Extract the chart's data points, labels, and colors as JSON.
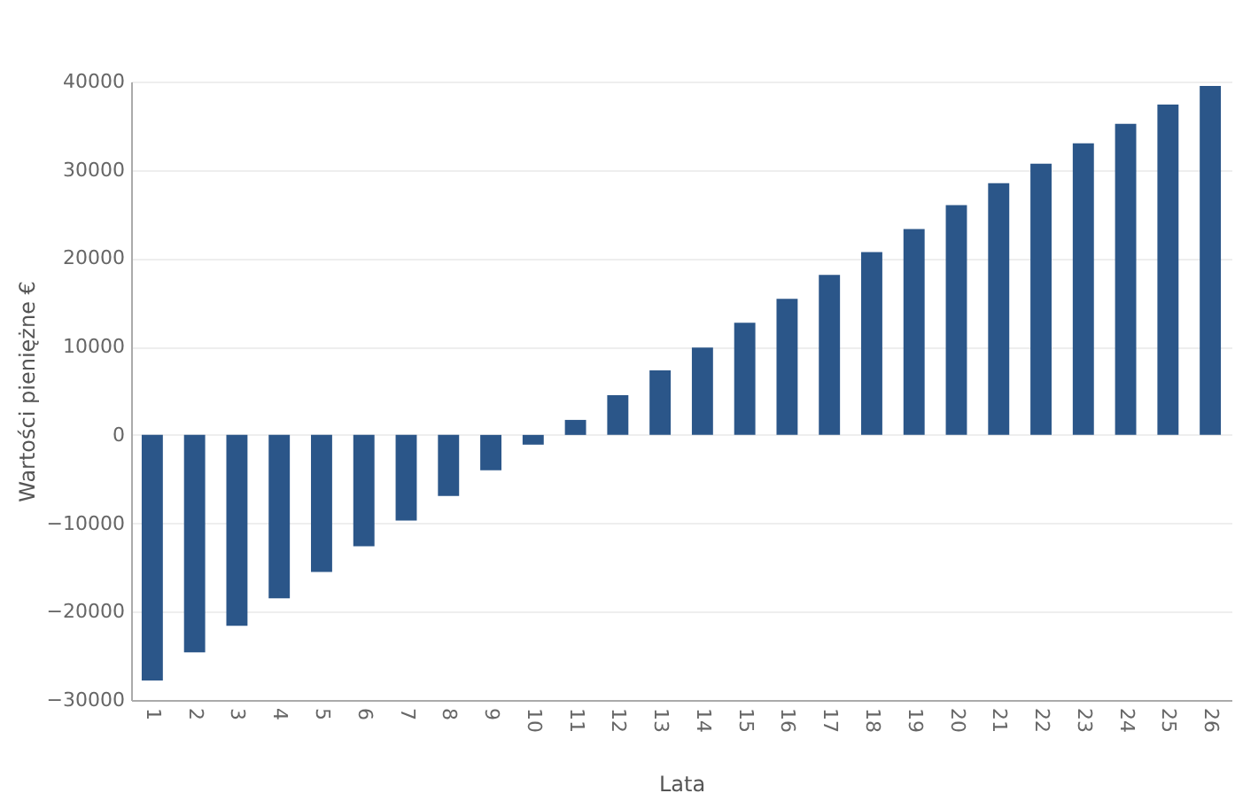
{
  "chart_data": {
    "type": "bar",
    "xlabel": "Lata",
    "ylabel": "Wartości pieniężne €",
    "categories": [
      "1",
      "2",
      "3",
      "4",
      "5",
      "6",
      "7",
      "8",
      "9",
      "10",
      "11",
      "12",
      "13",
      "14",
      "15",
      "16",
      "17",
      "18",
      "19",
      "20",
      "21",
      "22",
      "23",
      "24",
      "25",
      "26"
    ],
    "values": [
      -27800,
      -24600,
      -21600,
      -18500,
      -15500,
      -12600,
      -9700,
      -6900,
      -4000,
      -1100,
      1700,
      4500,
      7300,
      9900,
      12700,
      15400,
      18100,
      20700,
      23300,
      26000,
      28500,
      30700,
      33000,
      35200,
      37400,
      39500
    ],
    "color": "#2b5689",
    "ylim": [
      -30000,
      40000
    ],
    "yticks": [
      -30000,
      -20000,
      -10000,
      0,
      10000,
      20000,
      30000,
      40000
    ],
    "grid": "y"
  }
}
